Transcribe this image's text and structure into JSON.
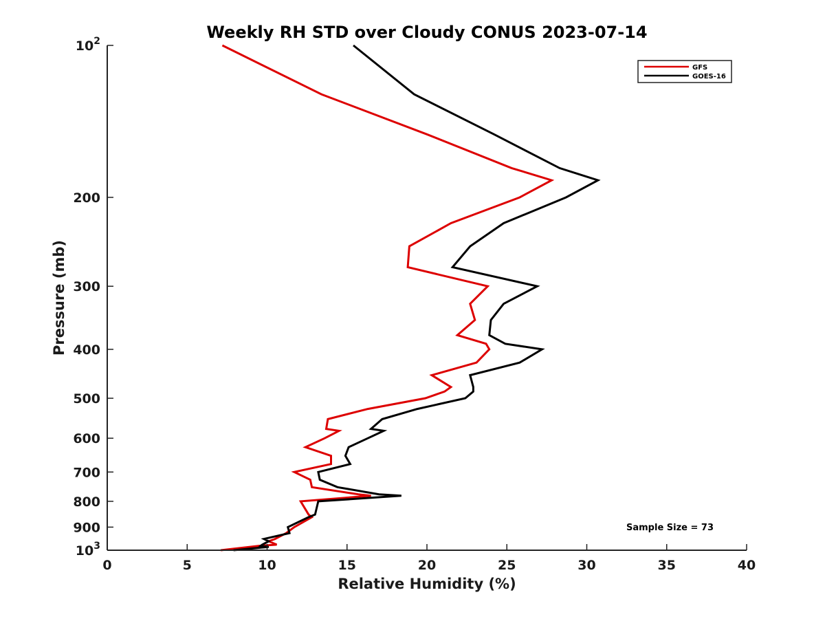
{
  "chart_data": {
    "type": "line",
    "title": "Weekly RH STD over Cloudy CONUS 2023-07-14",
    "xlabel": "Relative Humidity (%)",
    "ylabel": "Pressure (mb)",
    "xlim": [
      0,
      40
    ],
    "ylim": [
      100,
      1000
    ],
    "y_scale": "log",
    "y_reversed": true,
    "x_ticks": [
      0,
      5,
      10,
      15,
      20,
      25,
      30,
      35,
      40
    ],
    "y_ticks": [
      {
        "value": 100,
        "label": "10",
        "sup": "2"
      },
      {
        "value": 200,
        "label": "200"
      },
      {
        "value": 300,
        "label": "300"
      },
      {
        "value": 400,
        "label": "400"
      },
      {
        "value": 500,
        "label": "500"
      },
      {
        "value": 600,
        "label": "600"
      },
      {
        "value": 700,
        "label": "700"
      },
      {
        "value": 800,
        "label": "800"
      },
      {
        "value": 900,
        "label": "900"
      },
      {
        "value": 1000,
        "label": "10",
        "sup": "3"
      }
    ],
    "legend_position": "top-right",
    "grid": false,
    "annotation": "Sample Size = 73",
    "series": [
      {
        "name": "GFS",
        "color": "#dd0000",
        "points": [
          [
            7.2,
            100
          ],
          [
            13.4,
            125
          ],
          [
            20.0,
            150
          ],
          [
            25.3,
            175
          ],
          [
            27.8,
            185
          ],
          [
            25.8,
            200
          ],
          [
            21.5,
            225
          ],
          [
            18.9,
            250
          ],
          [
            18.8,
            275
          ],
          [
            23.8,
            300
          ],
          [
            22.7,
            325
          ],
          [
            23.0,
            350
          ],
          [
            21.9,
            375
          ],
          [
            23.7,
            390
          ],
          [
            23.9,
            400
          ],
          [
            23.1,
            425
          ],
          [
            20.3,
            450
          ],
          [
            21.5,
            475
          ],
          [
            21.1,
            485
          ],
          [
            19.9,
            500
          ],
          [
            16.3,
            525
          ],
          [
            13.8,
            550
          ],
          [
            13.7,
            575
          ],
          [
            14.5,
            580
          ],
          [
            13.6,
            600
          ],
          [
            12.4,
            625
          ],
          [
            14.0,
            650
          ],
          [
            14.0,
            675
          ],
          [
            11.7,
            700
          ],
          [
            12.7,
            725
          ],
          [
            12.8,
            750
          ],
          [
            15.7,
            775
          ],
          [
            16.5,
            780
          ],
          [
            12.1,
            800
          ],
          [
            12.6,
            850
          ],
          [
            12.8,
            860
          ],
          [
            11.7,
            900
          ],
          [
            11.2,
            925
          ],
          [
            10.5,
            950
          ],
          [
            10.1,
            960
          ],
          [
            10.6,
            975
          ],
          [
            9.5,
            980
          ],
          [
            8.9,
            985
          ],
          [
            7.1,
            1000
          ]
        ]
      },
      {
        "name": "GOES-16",
        "color": "#000000",
        "points": [
          [
            15.4,
            100
          ],
          [
            19.2,
            125
          ],
          [
            24.2,
            150
          ],
          [
            28.3,
            175
          ],
          [
            30.7,
            185
          ],
          [
            28.7,
            200
          ],
          [
            24.8,
            225
          ],
          [
            22.7,
            250
          ],
          [
            21.6,
            275
          ],
          [
            26.9,
            300
          ],
          [
            24.8,
            325
          ],
          [
            24.0,
            350
          ],
          [
            23.9,
            375
          ],
          [
            24.9,
            390
          ],
          [
            27.2,
            400
          ],
          [
            25.8,
            425
          ],
          [
            22.7,
            450
          ],
          [
            22.9,
            475
          ],
          [
            22.9,
            485
          ],
          [
            22.4,
            500
          ],
          [
            19.4,
            525
          ],
          [
            17.2,
            550
          ],
          [
            16.5,
            575
          ],
          [
            17.3,
            580
          ],
          [
            16.3,
            600
          ],
          [
            15.1,
            625
          ],
          [
            14.9,
            650
          ],
          [
            15.2,
            675
          ],
          [
            13.2,
            700
          ],
          [
            13.3,
            725
          ],
          [
            14.4,
            750
          ],
          [
            17.0,
            775
          ],
          [
            18.4,
            780
          ],
          [
            13.2,
            800
          ],
          [
            13.0,
            850
          ],
          [
            12.6,
            860
          ],
          [
            11.3,
            900
          ],
          [
            11.4,
            925
          ],
          [
            9.8,
            950
          ],
          [
            10.1,
            960
          ],
          [
            9.7,
            975
          ],
          [
            9.6,
            980
          ],
          [
            10.1,
            985
          ],
          [
            7.9,
            1000
          ]
        ]
      }
    ]
  }
}
